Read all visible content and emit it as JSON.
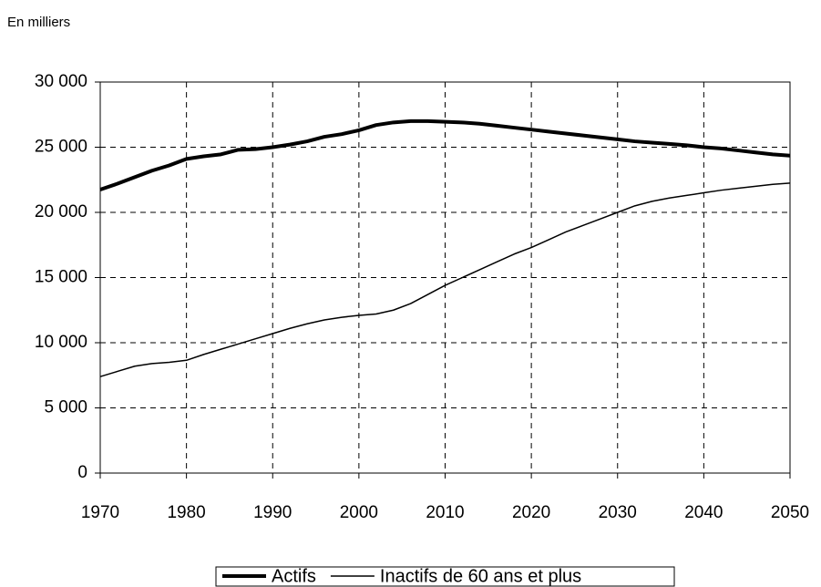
{
  "chart_data": {
    "type": "line",
    "y_label": "En milliers",
    "x": [
      1970,
      1972,
      1974,
      1976,
      1978,
      1980,
      1982,
      1984,
      1986,
      1988,
      1990,
      1992,
      1994,
      1996,
      1998,
      2000,
      2002,
      2004,
      2006,
      2008,
      2010,
      2012,
      2014,
      2016,
      2018,
      2020,
      2022,
      2024,
      2026,
      2028,
      2030,
      2032,
      2034,
      2036,
      2038,
      2040,
      2042,
      2044,
      2046,
      2048,
      2050
    ],
    "series": [
      {
        "name": "Actifs",
        "color": "#000000",
        "line_width": 4,
        "values": [
          21750,
          22200,
          22700,
          23200,
          23600,
          24100,
          24300,
          24450,
          24800,
          24850,
          25000,
          25200,
          25450,
          25800,
          26000,
          26300,
          26700,
          26900,
          27000,
          27000,
          26950,
          26900,
          26800,
          26650,
          26500,
          26350,
          26200,
          26050,
          25900,
          25750,
          25600,
          25450,
          25350,
          25250,
          25150,
          25000,
          24900,
          24750,
          24600,
          24450,
          24350
        ]
      },
      {
        "name": "Inactifs de 60 ans et plus",
        "color": "#000000",
        "line_width": 1.5,
        "values": [
          7400,
          7800,
          8200,
          8400,
          8500,
          8650,
          9100,
          9500,
          9900,
          10300,
          10700,
          11100,
          11450,
          11750,
          11950,
          12100,
          12200,
          12500,
          13000,
          13700,
          14400,
          15000,
          15600,
          16200,
          16800,
          17300,
          17900,
          18500,
          19000,
          19500,
          20000,
          20500,
          20850,
          21100,
          21300,
          21500,
          21700,
          21850,
          22000,
          22150,
          22250
        ]
      }
    ],
    "xlim": [
      1970,
      2050
    ],
    "xticks": [
      1970,
      1980,
      1990,
      2000,
      2010,
      2020,
      2030,
      2040,
      2050
    ],
    "ylim": [
      0,
      30000
    ],
    "yticks": [
      0,
      {
        "value": 5000,
        "label": "5 000"
      },
      {
        "value": 10000,
        "label": "10 000"
      },
      {
        "value": 15000,
        "label": "15 000"
      },
      {
        "value": 20000,
        "label": "20 000"
      },
      {
        "value": 25000,
        "label": "25 000"
      },
      {
        "value": 30000,
        "label": "30 000"
      }
    ],
    "grid": true,
    "legend": "bottom"
  }
}
